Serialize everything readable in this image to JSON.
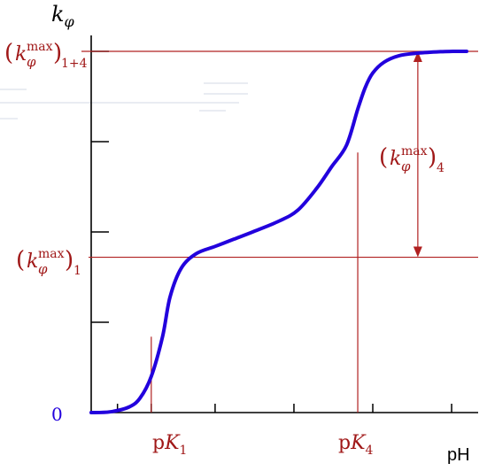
{
  "chart_data": {
    "type": "line",
    "title": "",
    "ylabel": {
      "main": "k",
      "sub": "φ"
    },
    "xlabel": "pH",
    "origin_label": "0",
    "grid": false,
    "ylim": [
      0,
      1
    ],
    "xlim": [
      0,
      1
    ],
    "series": [
      {
        "color": "#2200dd",
        "x": [
          0.0,
          0.05,
          0.1,
          0.13,
          0.16,
          0.19,
          0.21,
          0.24,
          0.28,
          0.33,
          0.38,
          0.43,
          0.5,
          0.55,
          0.6,
          0.64,
          0.68,
          0.71,
          0.73,
          0.75,
          0.78,
          0.82,
          0.87,
          0.93,
          0.97,
          1.0
        ],
        "y": [
          0.0,
          0.002,
          0.015,
          0.04,
          0.1,
          0.21,
          0.32,
          0.4,
          0.44,
          0.46,
          0.48,
          0.5,
          0.53,
          0.56,
          0.62,
          0.68,
          0.74,
          0.84,
          0.9,
          0.94,
          0.97,
          0.988,
          0.995,
          0.999,
          1.0,
          1.0
        ]
      }
    ],
    "reference_lines": {
      "color": "#b02020",
      "horizontal": [
        {
          "y": 1.0,
          "label": {
            "main": "k",
            "sub": "φ",
            "sup": "max",
            "index": "1+4"
          }
        },
        {
          "y": 0.43,
          "label": {
            "main": "k",
            "sub": "φ",
            "sup": "max",
            "index": "1"
          }
        }
      ],
      "vertical": [
        {
          "x": 0.16,
          "y_top": 0.21,
          "label": {
            "main": "p",
            "italic": "K",
            "sub": "1"
          }
        },
        {
          "x": 0.71,
          "y_top": 0.72,
          "label": {
            "main": "p",
            "italic": "K",
            "sub": "4"
          }
        }
      ],
      "arrow": {
        "x": 0.87,
        "y_from": 0.43,
        "y_to": 1.0,
        "label": {
          "main": "k",
          "sub": "φ",
          "sup": "max",
          "index": "4"
        }
      }
    },
    "x_ticks": [
      0.07,
      0.16,
      0.33,
      0.54,
      0.75,
      0.96
    ],
    "y_ticks": [
      0.25,
      0.5,
      0.75,
      1.0
    ]
  }
}
